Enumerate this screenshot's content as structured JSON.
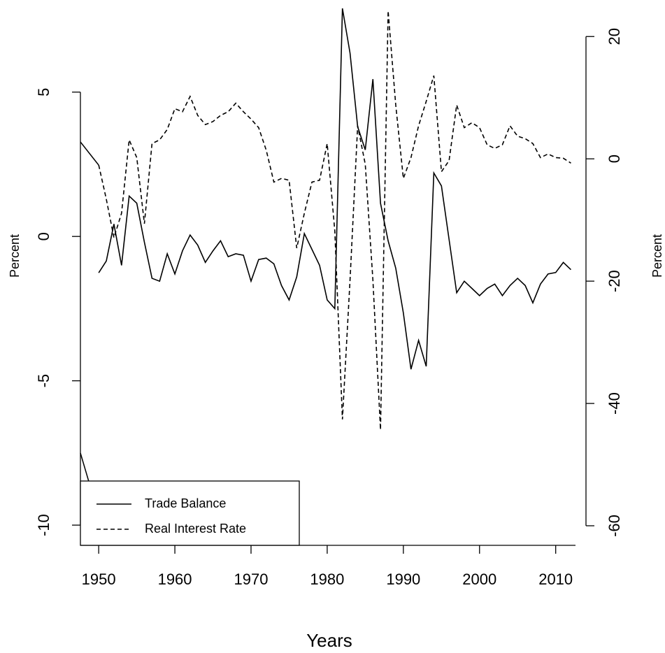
{
  "chart_data": {
    "type": "line",
    "x_label": "Years",
    "y_label": "Percent",
    "y2_label": "Percent",
    "x": [
      1950,
      1951,
      1952,
      1953,
      1954,
      1955,
      1956,
      1957,
      1958,
      1959,
      1960,
      1961,
      1962,
      1963,
      1964,
      1965,
      1966,
      1967,
      1968,
      1969,
      1970,
      1971,
      1972,
      1973,
      1974,
      1975,
      1976,
      1977,
      1978,
      1979,
      1980,
      1981,
      1982,
      1983,
      1984,
      1985,
      1986,
      1987,
      1988,
      1989,
      1990,
      1991,
      1992,
      1993,
      1994,
      1995,
      1996,
      1997,
      1998,
      1999,
      2000,
      2001,
      2002,
      2003,
      2004,
      2005,
      2006,
      2007,
      2008,
      2009,
      2010,
      2011,
      2012
    ],
    "series": [
      {
        "name": "Trade Balance",
        "color": "#000000",
        "linestyle": "solid",
        "values": [
          -1.26,
          -0.85,
          0.43,
          -1.0,
          1.4,
          1.15,
          -0.2,
          -1.45,
          -1.55,
          -0.6,
          -1.3,
          -0.5,
          0.05,
          -0.3,
          -0.9,
          -0.5,
          -0.15,
          -0.7,
          -0.6,
          -0.65,
          -1.55,
          -0.8,
          -0.75,
          -0.95,
          -1.7,
          -2.2,
          -1.4,
          0.1,
          -0.45,
          -1.0,
          -2.2,
          -2.5,
          7.9,
          6.35,
          3.8,
          3.0,
          5.45,
          1.15,
          -0.15,
          -1.1,
          -2.65,
          -4.6,
          -3.6,
          -4.5,
          2.2,
          1.75,
          -0.1,
          -1.95,
          -1.55,
          -1.8,
          -2.05,
          -1.8,
          -1.65,
          -2.05,
          -1.7,
          -1.45,
          -1.7,
          -2.3,
          -1.65,
          -1.3,
          -1.25,
          -0.9,
          -1.15
        ]
      },
      {
        "name": "Real Interest Rate",
        "color": "#000000",
        "linestyle": "dashed",
        "axis": "y2",
        "values": [
          -1.0,
          -6.6,
          -12.9,
          -8.9,
          3.1,
          0.2,
          -10.6,
          2.5,
          3.1,
          4.8,
          8.2,
          7.7,
          10.2,
          7.1,
          5.6,
          6.1,
          7.1,
          7.7,
          9.1,
          7.7,
          6.5,
          5.1,
          1.4,
          -3.8,
          -3.2,
          -3.5,
          -14.6,
          -8.9,
          -3.8,
          -3.5,
          2.5,
          -11.8,
          -42.6,
          -19.8,
          5.4,
          -0.9,
          -19.8,
          -44.3,
          24.2,
          8.8,
          -3.2,
          0.2,
          5.4,
          9.4,
          13.6,
          -2.1,
          -0.3,
          8.8,
          5.1,
          5.9,
          5.1,
          2.3,
          1.7,
          2.3,
          5.4,
          3.7,
          3.3,
          2.5,
          0.2,
          0.8,
          0.2,
          0.1,
          -0.7
        ]
      }
    ],
    "xlim": [
      1947.6,
      2012.6
    ],
    "xticks": [
      1950,
      1960,
      1970,
      1980,
      1990,
      2000,
      2010
    ],
    "ylim": [
      -10.7,
      7.9
    ],
    "yticks": [
      -10,
      -5,
      0,
      5
    ],
    "y2lim": [
      -63.2,
      24.6
    ],
    "y2ticks": [
      -60,
      -40,
      -20,
      0,
      20
    ],
    "legend": "bottomleft",
    "grid": false
  }
}
